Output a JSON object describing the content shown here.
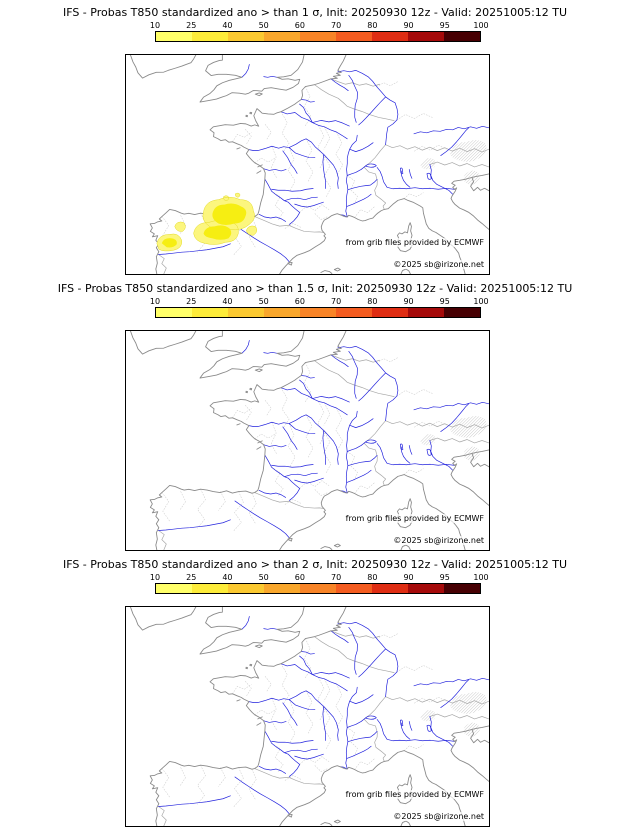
{
  "panels": [
    {
      "title": "IFS - Probas T850  standardized ano > than 1 σ, Init: 20250930 12z - Valid: 20251005:12 TU"
    },
    {
      "title": "IFS - Probas T850  standardized ano > than 1.5 σ, Init: 20250930 12z - Valid: 20251005:12 TU"
    },
    {
      "title": "IFS - Probas T850  standardized ano > than 2 σ, Init: 20250930 12z - Valid: 20251005:12 TU"
    }
  ],
  "colorbar": {
    "ticks": [
      "10",
      "25",
      "40",
      "50",
      "60",
      "70",
      "80",
      "90",
      "95",
      "100"
    ],
    "colors": [
      "#ffff69",
      "#fdec3a",
      "#fbc931",
      "#f9a72c",
      "#f88427",
      "#f45c20",
      "#df2d13",
      "#a50a0a",
      "#470003"
    ]
  },
  "credits": {
    "provider": "from grib files provided by ECMWF",
    "copyright": "©2025 sb@irizone.net"
  },
  "map_colors": {
    "coastline": "#8a8a8a",
    "borders": "#a8a8a8",
    "admin": "#cccccc",
    "rivers": "#2323dd",
    "anomaly_fill": "#f6ee12",
    "anomaly_fringe": "#fcf67e",
    "hatch": "#b9b9b9"
  }
}
